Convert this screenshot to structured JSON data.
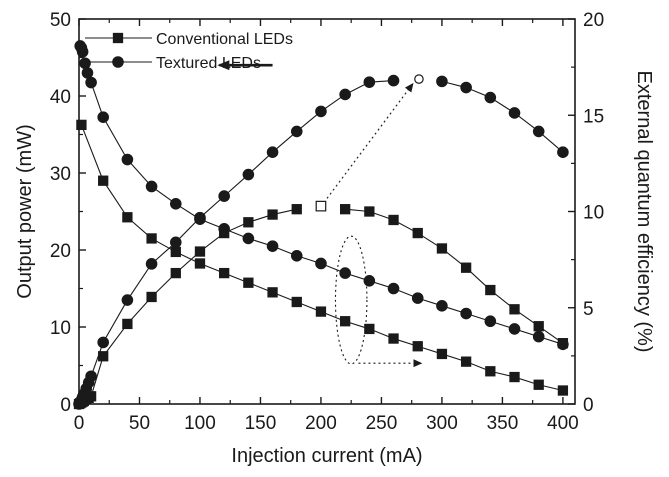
{
  "chart_data": {
    "type": "line",
    "title": "",
    "xlabel": "Injection current  (mA)",
    "ylabel_left": "Output power (mW)",
    "ylabel_right": "External quantum efficiency  (%)",
    "xlim": [
      0,
      410
    ],
    "ylim_left": [
      0,
      50
    ],
    "ylim_right": [
      0,
      20
    ],
    "x_ticks": [
      0,
      50,
      100,
      150,
      200,
      250,
      300,
      350,
      400
    ],
    "y_left_ticks": [
      0,
      10,
      20,
      30,
      40,
      50
    ],
    "y_right_ticks": [
      0,
      5,
      10,
      15,
      20
    ],
    "grid": false,
    "legend_position": "top-left",
    "series": [
      {
        "name": "Conventional LEDs",
        "axis": "left",
        "marker": "square",
        "x": [
          0,
          1,
          2,
          3,
          4,
          6,
          8,
          10,
          20,
          40,
          60,
          80,
          100,
          120,
          140,
          160,
          180
        ],
        "y": [
          0,
          0.1,
          0.2,
          0.3,
          0.4,
          0.6,
          0.8,
          1.0,
          6.2,
          10.4,
          13.9,
          17.0,
          19.8,
          22.2,
          23.6,
          24.6,
          25.3
        ]
      },
      {
        "name": "Conventional LEDs",
        "axis": "left",
        "marker": "square",
        "x": [
          220,
          240,
          260,
          280,
          300,
          320,
          340,
          360,
          380,
          400
        ],
        "y": [
          25.3,
          25.0,
          23.9,
          22.2,
          20.2,
          17.7,
          14.8,
          12.3,
          10.1,
          7.9
        ]
      },
      {
        "name": "Conventional LEDs",
        "axis": "right",
        "marker": "square",
        "x": [
          2,
          20,
          40,
          60,
          80,
          100,
          120,
          140,
          160,
          180,
          200,
          220,
          240,
          260,
          280,
          300,
          320,
          340,
          360,
          380,
          400
        ],
        "y": [
          14.5,
          11.6,
          9.7,
          8.6,
          7.9,
          7.3,
          6.8,
          6.3,
          5.8,
          5.3,
          4.8,
          4.3,
          3.9,
          3.4,
          3.0,
          2.6,
          2.2,
          1.7,
          1.4,
          1.0,
          0.7
        ]
      },
      {
        "name": "Textured LEDs",
        "axis": "left",
        "marker": "circle",
        "x": [
          0,
          1,
          2,
          3,
          4,
          6,
          8,
          10,
          20,
          40,
          60,
          80,
          100,
          120,
          140,
          160,
          180,
          200,
          220,
          240,
          260
        ],
        "y": [
          0,
          0.2,
          0.5,
          0.9,
          1.3,
          2.0,
          2.8,
          3.6,
          8.0,
          13.5,
          18.2,
          21.0,
          24.2,
          27.0,
          29.8,
          32.7,
          35.4,
          38.0,
          40.2,
          41.8,
          42.0
        ]
      },
      {
        "name": "Textured LEDs",
        "axis": "left",
        "marker": "circle",
        "x": [
          300,
          320,
          340,
          360,
          380,
          400
        ],
        "y": [
          41.9,
          41.1,
          39.8,
          37.8,
          35.4,
          32.7
        ]
      },
      {
        "name": "Textured LEDs",
        "axis": "right",
        "marker": "circle",
        "x": [
          1,
          2,
          3,
          5,
          7,
          10,
          20,
          40,
          60,
          80,
          100,
          120,
          140,
          160,
          180,
          200,
          220,
          240,
          260,
          280,
          300,
          320,
          340,
          360,
          380,
          400
        ],
        "y": [
          18.6,
          18.5,
          18.3,
          17.7,
          17.2,
          16.7,
          14.9,
          12.7,
          11.3,
          10.4,
          9.6,
          9.1,
          8.6,
          8.2,
          7.7,
          7.3,
          6.8,
          6.4,
          6.0,
          5.5,
          5.1,
          4.7,
          4.3,
          3.9,
          3.5,
          3.1
        ]
      }
    ],
    "annotations": {
      "arrow_left": {
        "from": [
          160,
          44
        ],
        "to": [
          116,
          44
        ],
        "axis": "left"
      },
      "open_square": {
        "x": 200,
        "y": 25.7,
        "axis": "left"
      },
      "open_circle": {
        "x": 281,
        "y": 42.2,
        "axis": "left"
      },
      "dotted_arrow_1": {
        "from": [
          205,
          26.7
        ],
        "to": [
          276,
          41.6
        ],
        "axis": "left"
      },
      "ellipse": {
        "cx": 225,
        "cy": 13.5,
        "rx": 13,
        "ry": 8.3,
        "axis": "left"
      },
      "dotted_arrow_2": {
        "from": [
          231,
          5.3
        ],
        "to": [
          283,
          5.3
        ],
        "axis": "left"
      }
    }
  }
}
